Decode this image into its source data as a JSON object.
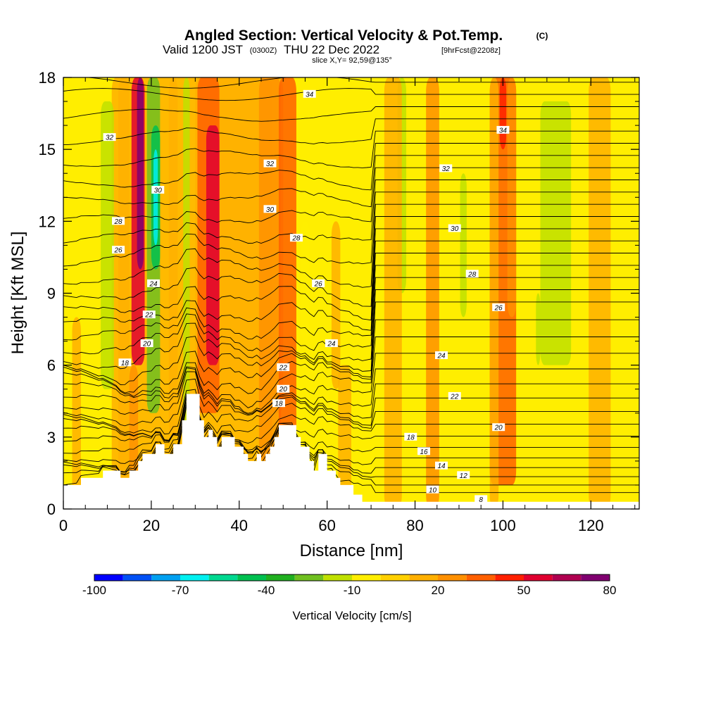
{
  "header": {
    "title_main": "Angled Section: Vertical Velocity & Pot.Temp.",
    "title_tag": "(C)",
    "valid_prefix": "Valid 1200 JST",
    "valid_utc": "(0300Z)",
    "valid_day": "THU 22 Dec 2022",
    "valid_fcst": "[9hrFcst@2208z]",
    "slice": "slice X,Y= 92,59@135°"
  },
  "colorbar": {
    "label": "Vertical Velocity [cm/s]",
    "levels": [
      -100,
      -90,
      -80,
      -70,
      -60,
      -50,
      -40,
      -30,
      -20,
      -10,
      0,
      10,
      20,
      30,
      40,
      50,
      60,
      70,
      80
    ],
    "tick_labels": [
      "-100",
      "-70",
      "-40",
      "-10",
      "20",
      "50",
      "80"
    ],
    "tick_values": [
      -100,
      -70,
      -40,
      -10,
      20,
      50,
      80
    ],
    "colors": [
      "#0000ff",
      "#0050f5",
      "#00a0f0",
      "#00f0f0",
      "#00d890",
      "#00c050",
      "#20b020",
      "#70c020",
      "#c0e000",
      "#ffee00",
      "#ffd000",
      "#ffb000",
      "#ff9000",
      "#ff6000",
      "#ff2000",
      "#e00030",
      "#b00050",
      "#800070"
    ]
  },
  "chart_data": {
    "type": "heatmap",
    "title": "Angled Section: Vertical Velocity & Pot.Temp. (C)",
    "xlabel": "Distance [nm]",
    "ylabel": "Height [Kft MSL]",
    "xlim": [
      0,
      131
    ],
    "ylim": [
      0,
      18
    ],
    "x_ticks": [
      0,
      20,
      40,
      60,
      80,
      100,
      120
    ],
    "x_tick_labels": [
      "0",
      "20",
      "40",
      "60",
      "80",
      "100",
      "120"
    ],
    "y_ticks": [
      0,
      3,
      6,
      9,
      12,
      15,
      18
    ],
    "y_tick_labels": [
      "0",
      "3",
      "6",
      "9",
      "12",
      "15",
      "18"
    ],
    "colored_field": "Vertical Velocity [cm/s]",
    "contour_field": "Pot.Temp. (C)",
    "terrain": [
      [
        0,
        1.0
      ],
      [
        4,
        1.0
      ],
      [
        4,
        1.3
      ],
      [
        9,
        1.3
      ],
      [
        9,
        1.6
      ],
      [
        13,
        1.6
      ],
      [
        13,
        1.3
      ],
      [
        15,
        1.3
      ],
      [
        15,
        1.6
      ],
      [
        17,
        1.6
      ],
      [
        17,
        2.0
      ],
      [
        18,
        2.0
      ],
      [
        18,
        2.3
      ],
      [
        21,
        2.3
      ],
      [
        21,
        2.7
      ],
      [
        23,
        2.7
      ],
      [
        23,
        2.3
      ],
      [
        25,
        2.3
      ],
      [
        25,
        2.7
      ],
      [
        27,
        2.7
      ],
      [
        27,
        3.7
      ],
      [
        28,
        3.7
      ],
      [
        28,
        4.8
      ],
      [
        31,
        4.8
      ],
      [
        31,
        3.7
      ],
      [
        32,
        3.7
      ],
      [
        32,
        3.0
      ],
      [
        33,
        3.0
      ],
      [
        33,
        3.3
      ],
      [
        34,
        3.3
      ],
      [
        34,
        3.0
      ],
      [
        35,
        3.0
      ],
      [
        35,
        2.6
      ],
      [
        36,
        2.6
      ],
      [
        36,
        3.0
      ],
      [
        39,
        3.0
      ],
      [
        39,
        2.6
      ],
      [
        41,
        2.6
      ],
      [
        41,
        2.3
      ],
      [
        42,
        2.3
      ],
      [
        42,
        2.0
      ],
      [
        44,
        2.0
      ],
      [
        44,
        2.3
      ],
      [
        45,
        2.3
      ],
      [
        45,
        2.0
      ],
      [
        46,
        2.0
      ],
      [
        46,
        2.3
      ],
      [
        47,
        2.3
      ],
      [
        47,
        2.6
      ],
      [
        48,
        2.6
      ],
      [
        48,
        3.0
      ],
      [
        49,
        3.0
      ],
      [
        49,
        3.5
      ],
      [
        53,
        3.5
      ],
      [
        53,
        3.0
      ],
      [
        54,
        3.0
      ],
      [
        54,
        2.6
      ],
      [
        56,
        2.6
      ],
      [
        56,
        2.0
      ],
      [
        57,
        2.0
      ],
      [
        57,
        1.6
      ],
      [
        58,
        1.6
      ],
      [
        58,
        2.3
      ],
      [
        60,
        2.3
      ],
      [
        60,
        1.6
      ],
      [
        62,
        1.6
      ],
      [
        62,
        1.3
      ],
      [
        63,
        1.3
      ],
      [
        63,
        1.0
      ],
      [
        66,
        1.0
      ],
      [
        66,
        0.6
      ],
      [
        68,
        0.6
      ],
      [
        68,
        0.3
      ],
      [
        131,
        0.3
      ]
    ],
    "theta_label_positions": [
      {
        "label": "34",
        "x": 56,
        "y": 17.3
      },
      {
        "label": "34",
        "x": 100,
        "y": 15.8
      },
      {
        "label": "32",
        "x": 10.5,
        "y": 15.5
      },
      {
        "label": "32",
        "x": 47,
        "y": 14.4
      },
      {
        "label": "32",
        "x": 87,
        "y": 14.2
      },
      {
        "label": "30",
        "x": 21.5,
        "y": 13.3
      },
      {
        "label": "30",
        "x": 47,
        "y": 12.5
      },
      {
        "label": "30",
        "x": 89,
        "y": 11.7
      },
      {
        "label": "28",
        "x": 12.5,
        "y": 12.0
      },
      {
        "label": "28",
        "x": 53,
        "y": 11.3
      },
      {
        "label": "28",
        "x": 93,
        "y": 9.8
      },
      {
        "label": "26",
        "x": 12.5,
        "y": 10.8
      },
      {
        "label": "26",
        "x": 58,
        "y": 9.4
      },
      {
        "label": "26",
        "x": 99,
        "y": 8.4
      },
      {
        "label": "24",
        "x": 20.5,
        "y": 9.4
      },
      {
        "label": "24",
        "x": 61,
        "y": 6.9
      },
      {
        "label": "24",
        "x": 86,
        "y": 6.4
      },
      {
        "label": "22",
        "x": 19.5,
        "y": 8.1
      },
      {
        "label": "22",
        "x": 50,
        "y": 5.9
      },
      {
        "label": "22",
        "x": 89,
        "y": 4.7
      },
      {
        "label": "20",
        "x": 19,
        "y": 6.9
      },
      {
        "label": "20",
        "x": 50,
        "y": 5.0
      },
      {
        "label": "20",
        "x": 99,
        "y": 3.4
      },
      {
        "label": "18",
        "x": 14,
        "y": 6.1
      },
      {
        "label": "18",
        "x": 49,
        "y": 4.4
      },
      {
        "label": "18",
        "x": 79,
        "y": 3.0
      },
      {
        "label": "16",
        "x": 82,
        "y": 2.4
      },
      {
        "label": "14",
        "x": 86,
        "y": 1.8
      },
      {
        "label": "12",
        "x": 91,
        "y": 1.4
      },
      {
        "label": "10",
        "x": 84,
        "y": 0.8
      },
      {
        "label": "8",
        "x": 95,
        "y": 0.4
      }
    ]
  }
}
